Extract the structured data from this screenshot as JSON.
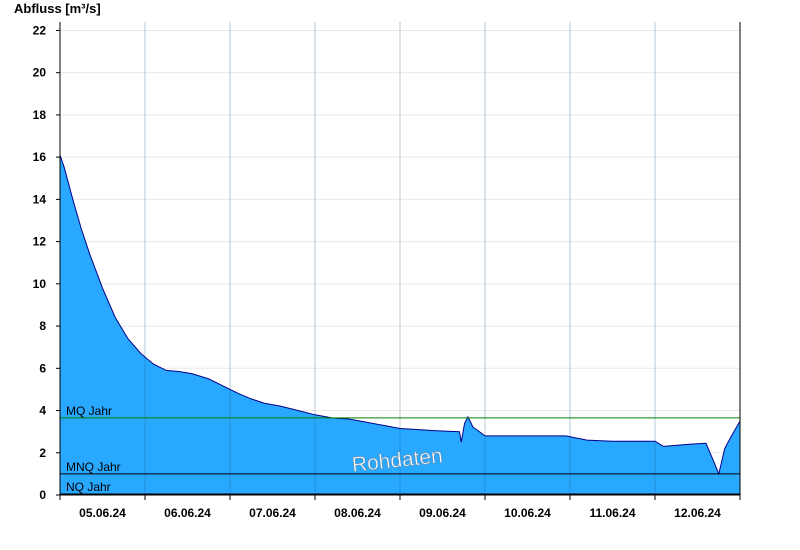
{
  "chart_data": {
    "type": "area",
    "title": "",
    "ylabel": "Abfluss [m³/s]",
    "xlabel": "",
    "ylim": [
      0,
      22.4
    ],
    "yticks": [
      0,
      2,
      4,
      6,
      8,
      10,
      12,
      14,
      16,
      18,
      20,
      22
    ],
    "xlim": [
      0,
      8
    ],
    "x_unit": "days since 04.06.24 12:00",
    "xtick_labels": [
      "05.06.24",
      "06.06.24",
      "07.06.24",
      "08.06.24",
      "09.06.24",
      "10.06.24",
      "11.06.24",
      "12.06.24"
    ],
    "grid": true,
    "colors": {
      "fill": "#29a8ff",
      "line": "#00008b",
      "mq": "#008000",
      "mnq": "#000000",
      "nq": "#000000"
    },
    "reference_lines": [
      {
        "label": "MQ Jahr",
        "value": 3.65
      },
      {
        "label": "MNQ Jahr",
        "value": 1.0
      },
      {
        "label": "NQ Jahr",
        "value": 0.05
      }
    ],
    "watermark": "Rohdaten",
    "series": [
      {
        "name": "Abfluss",
        "x": [
          0,
          0.05,
          0.15,
          0.25,
          0.35,
          0.5,
          0.65,
          0.8,
          0.95,
          1.1,
          1.25,
          1.4,
          1.55,
          1.75,
          1.95,
          2.1,
          2.25,
          2.4,
          2.6,
          2.8,
          3.0,
          3.2,
          3.4,
          3.6,
          3.8,
          4.0,
          4.2,
          4.4,
          4.7,
          4.72,
          4.76,
          4.8,
          4.86,
          4.9,
          5.0,
          5.3,
          5.6,
          5.95,
          6.2,
          6.5,
          6.8,
          7.0,
          7.1,
          7.4,
          7.6,
          7.7,
          7.75,
          7.82,
          7.9,
          8.0
        ],
        "y": [
          16.1,
          15.5,
          14.0,
          12.6,
          11.4,
          9.8,
          8.4,
          7.4,
          6.7,
          6.2,
          5.9,
          5.85,
          5.75,
          5.5,
          5.1,
          4.8,
          4.55,
          4.35,
          4.2,
          4.0,
          3.8,
          3.65,
          3.6,
          3.45,
          3.3,
          3.15,
          3.1,
          3.05,
          3.0,
          2.5,
          3.4,
          3.7,
          3.2,
          3.1,
          2.8,
          2.8,
          2.8,
          2.8,
          2.6,
          2.55,
          2.55,
          2.55,
          2.3,
          2.4,
          2.45,
          1.5,
          1.0,
          2.2,
          2.8,
          3.5
        ]
      }
    ]
  }
}
